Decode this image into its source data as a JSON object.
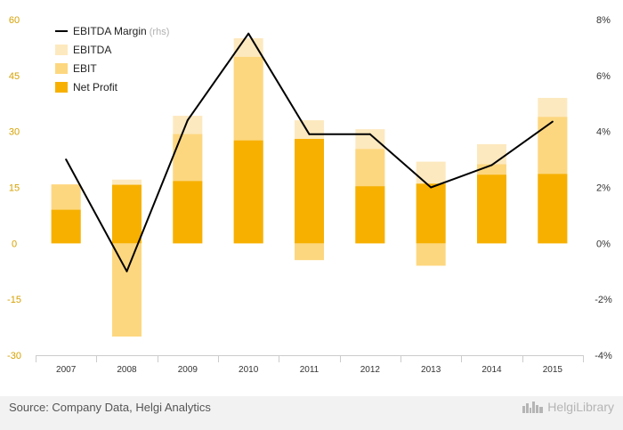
{
  "chart_data": {
    "type": "bar",
    "categories": [
      "2007",
      "2008",
      "2009",
      "2010",
      "2011",
      "2012",
      "2013",
      "2014",
      "2015"
    ],
    "series": [
      {
        "name": "EBITDA",
        "values": [
          15.8,
          17.1,
          34.2,
          55.0,
          33.0,
          30.6,
          21.9,
          26.6,
          39.0
        ]
      },
      {
        "name": "EBIT",
        "values": [
          15.8,
          -25.0,
          29.3,
          50.0,
          -4.5,
          25.3,
          -6.0,
          21.2,
          33.9
        ]
      },
      {
        "name": "Net Profit",
        "values": [
          9.0,
          15.7,
          16.7,
          27.6,
          28.0,
          15.3,
          16.0,
          18.4,
          18.6
        ]
      },
      {
        "name": "EBITDA Margin",
        "axis": "right",
        "values": [
          3.0,
          -1.0,
          4.4,
          7.5,
          3.9,
          3.9,
          2.0,
          2.8,
          4.35
        ]
      }
    ],
    "legend": {
      "placement": "top-left",
      "items": [
        {
          "label": "EBITDA Margin",
          "suffix": "(rhs)",
          "kind": "line"
        },
        {
          "label": "EBITDA",
          "kind": "bar"
        },
        {
          "label": "EBIT",
          "kind": "bar"
        },
        {
          "label": "Net Profit",
          "kind": "bar"
        }
      ]
    },
    "y_left": {
      "ticks": [
        "60",
        "45",
        "30",
        "15",
        "0",
        "-15",
        "-30"
      ],
      "range": [
        -30,
        60
      ]
    },
    "y_right": {
      "ticks": [
        "8%",
        "6%",
        "4%",
        "2%",
        "0%",
        "-2%",
        "-4%"
      ],
      "range": [
        -4,
        8
      ]
    },
    "grid": false,
    "colors": {
      "ebitda": "#fde9bf",
      "ebit": "#fdd77f",
      "net_profit": "#f7b000",
      "margin_line": "#000000",
      "left_tick_text": "#d6a100",
      "right_tick_text": "#333333"
    }
  },
  "footer": {
    "source": "Source: Company Data, Helgi Analytics",
    "logo_text": "HelgiLibrary",
    "logo_icon": "city-skyline-icon"
  }
}
